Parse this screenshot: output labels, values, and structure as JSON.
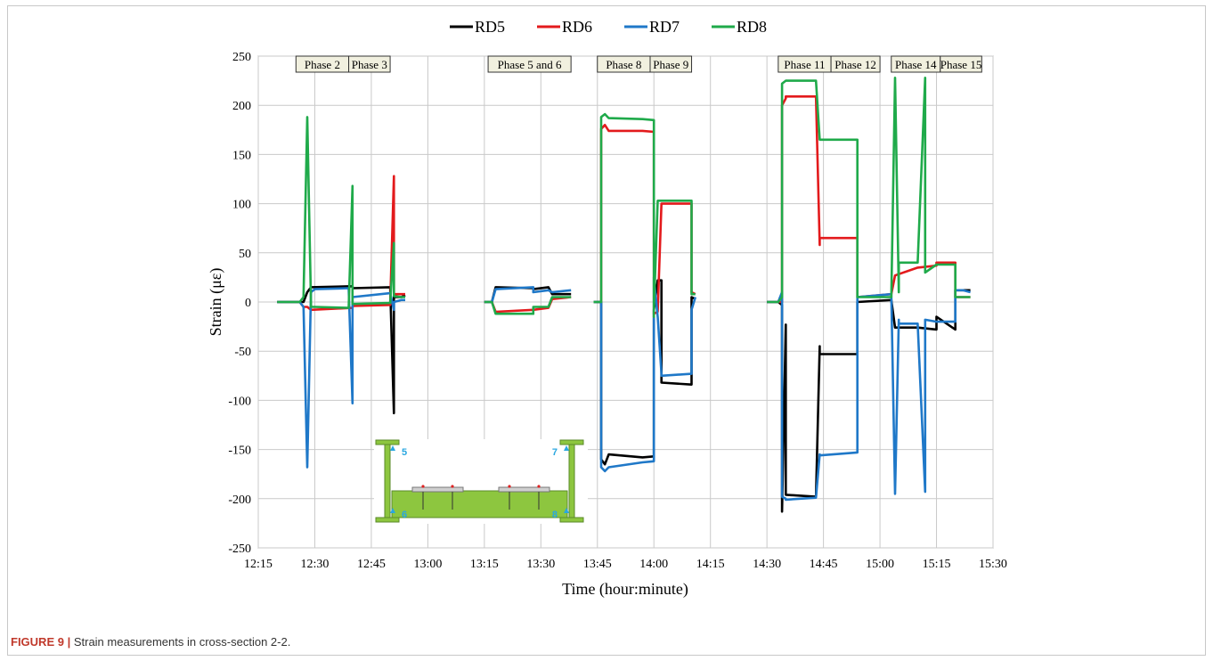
{
  "caption": {
    "label": "FIGURE 9 |",
    "text": "Strain measurements in cross-section 2-2."
  },
  "chart_data": {
    "type": "line",
    "title": "",
    "xlabel": "Time (hour:minute)",
    "ylabel": "Strain (με)",
    "xlim": [
      "12:15",
      "15:30"
    ],
    "ylim": [
      -250,
      250
    ],
    "x_ticks": [
      "12:15",
      "12:30",
      "12:45",
      "13:00",
      "13:15",
      "13:30",
      "13:45",
      "14:00",
      "14:15",
      "14:30",
      "14:45",
      "15:00",
      "15:15",
      "15:30"
    ],
    "y_ticks": [
      250,
      200,
      150,
      100,
      50,
      0,
      -50,
      -100,
      -150,
      -200,
      -250
    ],
    "grid": true,
    "legend_position": "top-center",
    "phases": [
      {
        "label": "Phase 2",
        "start": "12:25",
        "end": "12:39"
      },
      {
        "label": "Phase 3",
        "start": "12:39",
        "end": "12:50"
      },
      {
        "label": "Phase 5 and 6",
        "start": "13:16",
        "end": "13:38"
      },
      {
        "label": "Phase 8",
        "start": "13:45",
        "end": "13:59"
      },
      {
        "label": "Phase 9",
        "start": "13:59",
        "end": "14:10"
      },
      {
        "label": "Phase 11",
        "start": "14:33",
        "end": "14:47"
      },
      {
        "label": "Phase 12",
        "start": "14:47",
        "end": "15:00"
      },
      {
        "label": "Phase 14",
        "start": "15:03",
        "end": "15:16"
      },
      {
        "label": "Phase 15",
        "start": "15:16",
        "end": "15:27"
      }
    ],
    "inset_labels": [
      "5",
      "7",
      "6",
      "8"
    ],
    "series": [
      {
        "name": "RD5",
        "color": "#000000",
        "points": [
          [
            "12:20",
            0
          ],
          [
            "12:26",
            0
          ],
          [
            "12:27",
            0
          ],
          [
            "12:28",
            10
          ],
          [
            "12:29",
            15
          ],
          [
            "12:40",
            16
          ],
          [
            "12:40",
            14
          ],
          [
            "12:50",
            15
          ],
          [
            "12:51",
            -113
          ],
          [
            "12:51",
            -35
          ],
          [
            "12:51",
            5
          ],
          [
            "12:53",
            5
          ],
          [
            "12:54",
            7
          ],
          null,
          [
            "13:15",
            0
          ],
          [
            "13:17",
            0
          ],
          [
            "13:18",
            15
          ],
          [
            "13:28",
            14
          ],
          [
            "13:28",
            13
          ],
          [
            "13:32",
            15
          ],
          [
            "13:33",
            8
          ],
          [
            "13:38",
            8
          ],
          null,
          [
            "13:44",
            0
          ],
          [
            "13:46",
            0
          ],
          [
            "13:46",
            -160
          ],
          [
            "13:47",
            -165
          ],
          [
            "13:48",
            -155
          ],
          [
            "13:57",
            -158
          ],
          [
            "14:00",
            -157
          ],
          [
            "14:00",
            -80
          ],
          [
            "14:00",
            -8
          ],
          [
            "14:01",
            22
          ],
          [
            "14:02",
            22
          ],
          [
            "14:02",
            -82
          ],
          [
            "14:10",
            -84
          ],
          [
            "14:10",
            5
          ],
          [
            "14:11",
            3
          ],
          null,
          [
            "14:30",
            0
          ],
          [
            "14:33",
            0
          ],
          [
            "14:34",
            -3
          ],
          [
            "14:34",
            -213
          ],
          [
            "14:35",
            -23
          ],
          [
            "14:35",
            -196
          ],
          [
            "14:43",
            -198
          ],
          [
            "14:44",
            -45
          ],
          [
            "14:44",
            -53
          ],
          [
            "14:54",
            -53
          ],
          [
            "14:54",
            0
          ],
          [
            "15:03",
            2
          ],
          [
            "15:04",
            -26
          ],
          [
            "15:10",
            -26
          ],
          [
            "15:15",
            -28
          ],
          [
            "15:15",
            -15
          ],
          [
            "15:20",
            -28
          ],
          [
            "15:20",
            12
          ],
          [
            "15:22",
            12
          ],
          [
            "15:24",
            12
          ]
        ]
      },
      {
        "name": "RD6",
        "color": "#e31a1c",
        "points": [
          [
            "12:20",
            0
          ],
          [
            "12:26",
            0
          ],
          [
            "12:27",
            -5
          ],
          [
            "12:28",
            -5
          ],
          [
            "12:29",
            -8
          ],
          [
            "12:40",
            -6
          ],
          [
            "12:40",
            -4
          ],
          [
            "12:50",
            -3
          ],
          [
            "12:51",
            128
          ],
          [
            "12:51",
            60
          ],
          [
            "12:51",
            8
          ],
          [
            "12:53",
            8
          ],
          [
            "12:54",
            8
          ],
          null,
          [
            "13:15",
            0
          ],
          [
            "13:17",
            0
          ],
          [
            "13:18",
            -10
          ],
          [
            "13:28",
            -8
          ],
          [
            "13:28",
            -8
          ],
          [
            "13:32",
            -6
          ],
          [
            "13:33",
            3
          ],
          [
            "13:38",
            5
          ],
          null,
          [
            "13:44",
            0
          ],
          [
            "13:46",
            0
          ],
          [
            "13:46",
            176
          ],
          [
            "13:47",
            180
          ],
          [
            "13:48",
            174
          ],
          [
            "13:57",
            174
          ],
          [
            "14:00",
            173
          ],
          [
            "14:00",
            -5
          ],
          [
            "14:00",
            -12
          ],
          [
            "14:01",
            -10
          ],
          [
            "14:02",
            100
          ],
          [
            "14:02",
            100
          ],
          [
            "14:10",
            100
          ],
          [
            "14:10",
            10
          ],
          [
            "14:11",
            8
          ],
          null,
          [
            "14:30",
            0
          ],
          [
            "14:33",
            0
          ],
          [
            "14:34",
            0
          ],
          [
            "14:34",
            200
          ],
          [
            "14:35",
            207
          ],
          [
            "14:35",
            209
          ],
          [
            "14:43",
            209
          ],
          [
            "14:44",
            58
          ],
          [
            "14:44",
            65
          ],
          [
            "14:54",
            65
          ],
          [
            "14:54",
            5
          ],
          [
            "15:03",
            8
          ],
          [
            "15:04",
            27
          ],
          [
            "15:10",
            35
          ],
          [
            "15:15",
            37
          ],
          [
            "15:15",
            40
          ],
          [
            "15:20",
            40
          ],
          [
            "15:20",
            5
          ],
          [
            "15:22",
            5
          ],
          [
            "15:24",
            5
          ]
        ]
      },
      {
        "name": "RD7",
        "color": "#1f78c8",
        "points": [
          [
            "12:20",
            0
          ],
          [
            "12:26",
            0
          ],
          [
            "12:27",
            -5
          ],
          [
            "12:28",
            -168
          ],
          [
            "12:29",
            12
          ],
          [
            "12:29",
            10
          ],
          [
            "12:30",
            13
          ],
          [
            "12:39",
            14
          ],
          [
            "12:40",
            -103
          ],
          [
            "12:40",
            5
          ],
          [
            "12:50",
            9
          ],
          [
            "12:51",
            -8
          ],
          [
            "12:51",
            0
          ],
          [
            "12:53",
            2
          ],
          [
            "12:54",
            2
          ],
          null,
          [
            "13:15",
            0
          ],
          [
            "13:17",
            0
          ],
          [
            "13:18",
            13
          ],
          [
            "13:28",
            15
          ],
          [
            "13:28",
            10
          ],
          [
            "13:32",
            12
          ],
          [
            "13:33",
            10
          ],
          [
            "13:38",
            12
          ],
          null,
          [
            "13:44",
            0
          ],
          [
            "13:46",
            0
          ],
          [
            "13:46",
            -168
          ],
          [
            "13:47",
            -172
          ],
          [
            "13:48",
            -168
          ],
          [
            "13:57",
            -163
          ],
          [
            "14:00",
            -162
          ],
          [
            "14:00",
            -60
          ],
          [
            "14:00",
            25
          ],
          [
            "14:01",
            -15
          ],
          [
            "14:02",
            -73
          ],
          [
            "14:02",
            -75
          ],
          [
            "14:10",
            -73
          ],
          [
            "14:10",
            -8
          ],
          [
            "14:11",
            5
          ],
          null,
          [
            "14:30",
            0
          ],
          [
            "14:33",
            0
          ],
          [
            "14:34",
            10
          ],
          [
            "14:34",
            -198
          ],
          [
            "14:35",
            -200
          ],
          [
            "14:35",
            -201
          ],
          [
            "14:43",
            -199
          ],
          [
            "14:44",
            -155
          ],
          [
            "14:44",
            -156
          ],
          [
            "14:54",
            -153
          ],
          [
            "14:54",
            5
          ],
          [
            "15:03",
            8
          ],
          [
            "15:04",
            -195
          ],
          [
            "15:05",
            -18
          ],
          [
            "15:05",
            -22
          ],
          [
            "15:10",
            -22
          ],
          [
            "15:12",
            -193
          ],
          [
            "15:12",
            -18
          ],
          [
            "15:15",
            -20
          ],
          [
            "15:20",
            -20
          ],
          [
            "15:20",
            12
          ],
          [
            "15:22",
            12
          ],
          [
            "15:24",
            10
          ]
        ]
      },
      {
        "name": "RD8",
        "color": "#1faa4a",
        "points": [
          [
            "12:20",
            0
          ],
          [
            "12:26",
            0
          ],
          [
            "12:27",
            5
          ],
          [
            "12:28",
            188
          ],
          [
            "12:29",
            -2
          ],
          [
            "12:29",
            -5
          ],
          [
            "12:30",
            -5
          ],
          [
            "12:39",
            -6
          ],
          [
            "12:40",
            118
          ],
          [
            "12:40",
            -2
          ],
          [
            "12:50",
            -1
          ],
          [
            "12:51",
            60
          ],
          [
            "12:51",
            6
          ],
          [
            "12:53",
            5
          ],
          [
            "12:54",
            5
          ],
          null,
          [
            "13:15",
            0
          ],
          [
            "13:17",
            0
          ],
          [
            "13:18",
            -12
          ],
          [
            "13:28",
            -12
          ],
          [
            "13:28",
            -5
          ],
          [
            "13:32",
            -5
          ],
          [
            "13:33",
            5
          ],
          [
            "13:38",
            5
          ],
          null,
          [
            "13:44",
            0
          ],
          [
            "13:46",
            0
          ],
          [
            "13:46",
            188
          ],
          [
            "13:47",
            191
          ],
          [
            "13:48",
            187
          ],
          [
            "13:57",
            186
          ],
          [
            "14:00",
            185
          ],
          [
            "14:00",
            -15
          ],
          [
            "14:00",
            -8
          ],
          [
            "14:01",
            103
          ],
          [
            "14:02",
            103
          ],
          [
            "14:02",
            103
          ],
          [
            "14:10",
            103
          ],
          [
            "14:10",
            8
          ],
          [
            "14:11",
            8
          ],
          null,
          [
            "14:30",
            0
          ],
          [
            "14:33",
            0
          ],
          [
            "14:34",
            5
          ],
          [
            "14:34",
            222
          ],
          [
            "14:35",
            225
          ],
          [
            "14:35",
            225
          ],
          [
            "14:43",
            225
          ],
          [
            "14:44",
            165
          ],
          [
            "14:44",
            165
          ],
          [
            "14:54",
            165
          ],
          [
            "14:54",
            5
          ],
          [
            "15:03",
            5
          ],
          [
            "15:04",
            228
          ],
          [
            "15:05",
            10
          ],
          [
            "15:05",
            40
          ],
          [
            "15:10",
            40
          ],
          [
            "15:12",
            228
          ],
          [
            "15:12",
            30
          ],
          [
            "15:15",
            38
          ],
          [
            "15:20",
            38
          ],
          [
            "15:20",
            5
          ],
          [
            "15:22",
            5
          ],
          [
            "15:24",
            5
          ]
        ]
      }
    ]
  }
}
